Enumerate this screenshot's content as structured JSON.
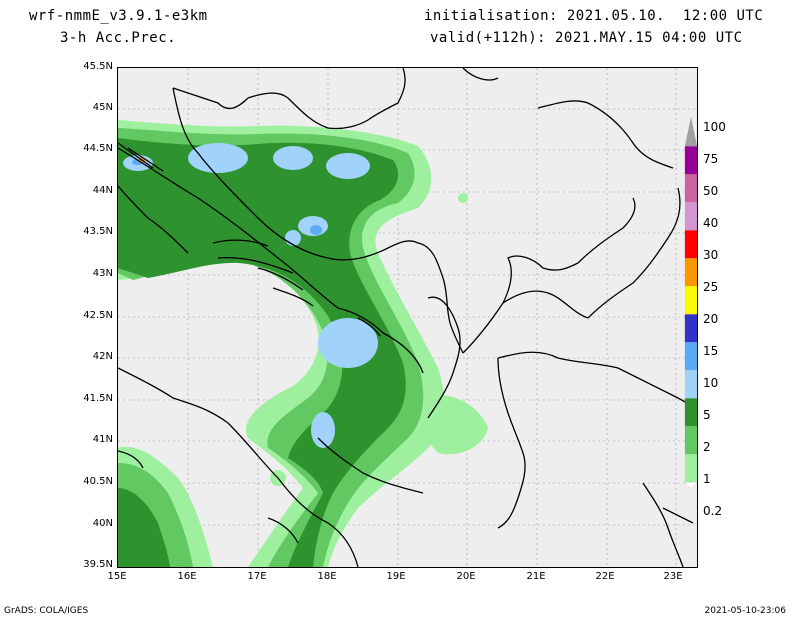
{
  "header": {
    "model": "wrf-nmmE_v3.9.1-e3km",
    "product": "3-h Acc.Prec.",
    "initialisation": "initialisation: 2021.05.10.  12:00 UTC",
    "valid": "valid(+112h): 2021.MAY.15 04:00 UTC"
  },
  "map": {
    "background": "#eeeeee",
    "lat_labels": [
      "45.5N",
      "45N",
      "44.5N",
      "44N",
      "43.5N",
      "43N",
      "42.5N",
      "42N",
      "41.5N",
      "41N",
      "40.5N",
      "40N",
      "39.5N"
    ],
    "lon_labels": [
      "15E",
      "16E",
      "17E",
      "18E",
      "19E",
      "20E",
      "21E",
      "22E",
      "23E"
    ]
  },
  "colorbar": {
    "levels": [
      {
        "label": "0.2",
        "color": "#9ef09e"
      },
      {
        "label": "1",
        "color": "#62c862"
      },
      {
        "label": "2",
        "color": "#2e932e"
      },
      {
        "label": "5",
        "color": "#a0d2fa"
      },
      {
        "label": "10",
        "color": "#5aaaf5"
      },
      {
        "label": "15",
        "color": "#3232c8"
      },
      {
        "label": "20",
        "color": "#fafa00"
      },
      {
        "label": "25",
        "color": "#fa9600"
      },
      {
        "label": "30",
        "color": "#fa0000"
      },
      {
        "label": "40",
        "color": "#d296d2"
      },
      {
        "label": "50",
        "color": "#c864a0"
      },
      {
        "label": "75",
        "color": "#960096"
      },
      {
        "label": "100",
        "color": "#a0a0a0"
      }
    ]
  },
  "footer": {
    "left": "GrADS: COLA/IGES",
    "right": "2021-05-10-23:06"
  }
}
